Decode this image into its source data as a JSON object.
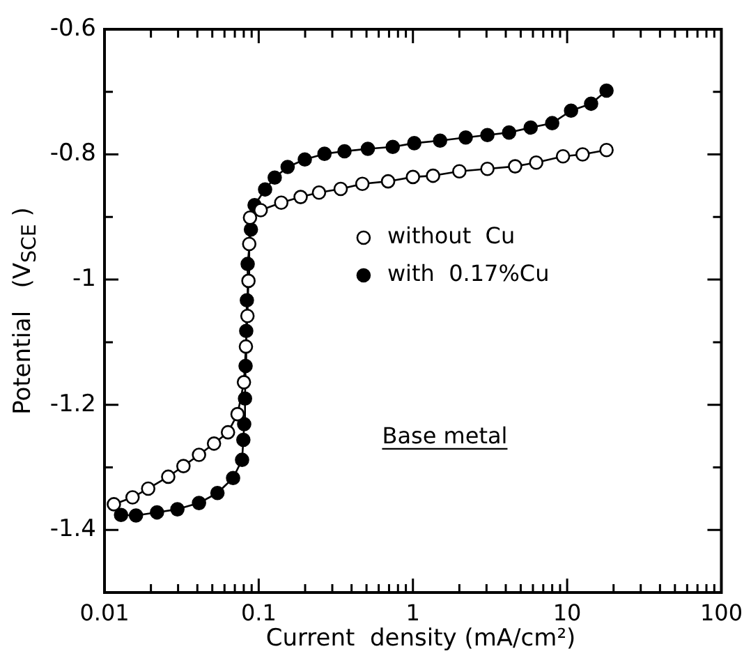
{
  "chart_data": {
    "type": "line",
    "xlabel": "Current  density (mA/cm²)",
    "ylabel": "Potential   (V$_{SCE}$ )",
    "log": "x",
    "xlim": [
      0.01,
      100
    ],
    "ylim": [
      -1.5,
      -0.6
    ],
    "xticks": [
      0.01,
      {
        "value": 0.02,
        "label": null
      },
      {
        "value": 0.03,
        "label": null
      },
      {
        "value": 0.04,
        "label": null
      },
      {
        "value": 0.05,
        "label": null
      },
      {
        "value": 0.06,
        "label": null
      },
      {
        "value": 0.07,
        "label": null
      },
      {
        "value": 0.08,
        "label": null
      },
      {
        "value": 0.09,
        "label": null
      },
      0.1,
      {
        "value": 0.2,
        "label": null
      },
      {
        "value": 0.3,
        "label": null
      },
      {
        "value": 0.4,
        "label": null
      },
      {
        "value": 0.5,
        "label": null
      },
      {
        "value": 0.6,
        "label": null
      },
      {
        "value": 0.7,
        "label": null
      },
      {
        "value": 0.8,
        "label": null
      },
      {
        "value": 0.9,
        "label": null
      },
      1,
      {
        "value": 2,
        "label": null
      },
      {
        "value": 3,
        "label": null
      },
      {
        "value": 4,
        "label": null
      },
      {
        "value": 5,
        "label": null
      },
      {
        "value": 6,
        "label": null
      },
      {
        "value": 7,
        "label": null
      },
      {
        "value": 8,
        "label": null
      },
      {
        "value": 9,
        "label": null
      },
      10,
      {
        "value": 20,
        "label": null
      },
      {
        "value": 30,
        "label": null
      },
      {
        "value": 40,
        "label": null
      },
      {
        "value": 50,
        "label": null
      },
      {
        "value": 60,
        "label": null
      },
      {
        "value": 70,
        "label": null
      },
      {
        "value": 80,
        "label": null
      },
      {
        "value": 90,
        "label": null
      },
      100
    ],
    "yticks": [
      -0.6,
      {
        "value": -0.7,
        "label": null
      },
      -0.8,
      {
        "value": -0.9,
        "label": null
      },
      -1.0,
      {
        "value": -1.1,
        "label": null
      },
      -1.2,
      {
        "value": -1.3,
        "label": null
      },
      -1.4,
      {
        "value": -1.5,
        "label": null
      }
    ],
    "grid": false,
    "legend": "center",
    "marker": "circle",
    "line_style": "solid",
    "annotations": [
      "Base metal"
    ],
    "series": [
      {
        "name": "without  Cu",
        "color": "#000000",
        "x": [
          0.0115,
          0.0152,
          0.0192,
          0.0259,
          0.0325,
          0.041,
          0.0513,
          0.0632,
          0.0729,
          0.0802,
          0.0826,
          0.0845,
          0.0858,
          0.0868,
          0.0878,
          0.103,
          0.14,
          0.187,
          0.246,
          0.34,
          0.47,
          0.69,
          1.0,
          1.35,
          2.0,
          3.04,
          4.6,
          6.3,
          9.4,
          12.6,
          18.0
        ],
        "values": [
          -1.359,
          -1.348,
          -1.334,
          -1.315,
          -1.298,
          -1.28,
          -1.262,
          -1.244,
          -1.215,
          -1.164,
          -1.107,
          -1.058,
          -1.002,
          -0.943,
          -0.901,
          -0.889,
          -0.877,
          -0.868,
          -0.861,
          -0.855,
          -0.847,
          -0.843,
          -0.836,
          -0.834,
          -0.827,
          -0.823,
          -0.819,
          -0.813,
          -0.803,
          -0.8,
          -0.793
        ]
      },
      {
        "name": "with  0.17%Cu",
        "color": "#000000",
        "x": [
          0.0128,
          0.016,
          0.0219,
          0.0297,
          0.041,
          0.054,
          0.0682,
          0.078,
          0.0795,
          0.0805,
          0.0815,
          0.0822,
          0.083,
          0.0838,
          0.0848,
          0.089,
          0.094,
          0.11,
          0.127,
          0.154,
          0.199,
          0.267,
          0.36,
          0.51,
          0.74,
          1.02,
          1.5,
          2.2,
          3.04,
          4.2,
          5.8,
          8.0,
          10.6,
          14.3,
          18.0
        ],
        "values": [
          -1.376,
          -1.377,
          -1.372,
          -1.367,
          -1.357,
          -1.341,
          -1.317,
          -1.288,
          -1.256,
          -1.231,
          -1.19,
          -1.138,
          -1.082,
          -1.033,
          -0.975,
          -0.92,
          -0.881,
          -0.856,
          -0.837,
          -0.82,
          -0.808,
          -0.799,
          -0.795,
          -0.791,
          -0.788,
          -0.782,
          -0.778,
          -0.773,
          -0.769,
          -0.765,
          -0.757,
          -0.75,
          -0.73,
          -0.719,
          -0.698
        ]
      }
    ]
  }
}
